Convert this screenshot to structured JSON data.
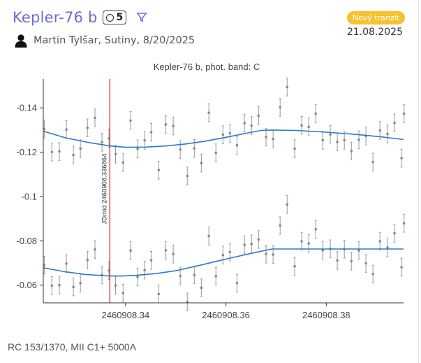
{
  "header": {
    "planet": "Kepler-76 b",
    "observation_count": "5",
    "tag": "Nový tranzit",
    "date": "21.08.2025",
    "author": "Martin Tylšar, Sutiny, 8/20/2025"
  },
  "footer": {
    "equipment": "RC 153/1370, MII C1+ 5000A"
  },
  "icons": {
    "count": "circle-icon",
    "filter": "filter-icon",
    "user": "user-icon"
  },
  "colors": {
    "title": "#6b6bd6",
    "tag": "#f7c230",
    "model": "#2b7ac9",
    "points": "#8a8a8a",
    "midline": "#cc1f1f"
  },
  "chart_data": {
    "type": "scatter",
    "title": "Kepler-76 b, phot. band: C",
    "xlim": [
      2460908.3236,
      2460908.3954
    ],
    "ylim": [
      -0.052,
      -0.153
    ],
    "xticks": [
      2460908.34,
      2460908.36,
      2460908.38
    ],
    "xtick_labels": [
      "2460908.34",
      "2460908.36",
      "2460908.38"
    ],
    "yticks": [
      -0.06,
      -0.08,
      -0.1,
      -0.12,
      -0.14
    ],
    "ytick_labels": [
      "-0.06",
      "-0.08",
      "-0.1",
      "-0.12",
      "-0.14"
    ],
    "grid": false,
    "midline": {
      "x": 2460908.336864,
      "label": "JDmid 2460908.336864"
    },
    "error": 0.004,
    "series": [
      {
        "points": [
          [
            2460908.3238,
            -0.1305
          ],
          [
            2460908.3253,
            -0.1201
          ],
          [
            2460908.3268,
            -0.1203
          ],
          [
            2460908.3282,
            -0.1302
          ],
          [
            2460908.3296,
            -0.1187
          ],
          [
            2460908.331,
            -0.1216
          ],
          [
            2460908.3324,
            -0.131
          ],
          [
            2460908.3339,
            -0.1355
          ],
          [
            2460908.3353,
            -0.1245
          ],
          [
            2460908.3367,
            -0.1262
          ],
          [
            2460908.338,
            -0.1191
          ],
          [
            2460908.3395,
            -0.1153
          ],
          [
            2460908.341,
            -0.1343
          ],
          [
            2460908.3424,
            -0.1215
          ],
          [
            2460908.3438,
            -0.1253
          ],
          [
            2460908.3451,
            -0.129
          ],
          [
            2460908.3466,
            -0.1119
          ],
          [
            2460908.348,
            -0.1325
          ],
          [
            2460908.3495,
            -0.1318
          ],
          [
            2460908.3509,
            -0.1212
          ],
          [
            2460908.3523,
            -0.1093
          ],
          [
            2460908.3537,
            -0.1217
          ],
          [
            2460908.3551,
            -0.1151
          ],
          [
            2460908.3566,
            -0.1378
          ],
          [
            2460908.358,
            -0.1197
          ],
          [
            2460908.3594,
            -0.1279
          ],
          [
            2460908.3608,
            -0.1285
          ],
          [
            2460908.3622,
            -0.1231
          ],
          [
            2460908.3637,
            -0.1331
          ],
          [
            2460908.3651,
            -0.132
          ],
          [
            2460908.3665,
            -0.1365
          ],
          [
            2460908.368,
            -0.1268
          ],
          [
            2460908.3694,
            -0.126
          ],
          [
            2460908.3708,
            -0.1402
          ],
          [
            2460908.3722,
            -0.1494
          ],
          [
            2460908.3737,
            -0.1216
          ],
          [
            2460908.3751,
            -0.1321
          ],
          [
            2460908.3765,
            -0.1314
          ],
          [
            2460908.3779,
            -0.1374
          ],
          [
            2460908.3793,
            -0.1254
          ],
          [
            2460908.3808,
            -0.128
          ],
          [
            2460908.3822,
            -0.1246
          ],
          [
            2460908.3836,
            -0.1254
          ],
          [
            2460908.385,
            -0.1205
          ],
          [
            2460908.3865,
            -0.1256
          ],
          [
            2460908.3879,
            -0.1273
          ],
          [
            2460908.3893,
            -0.1155
          ],
          [
            2460908.3907,
            -0.1298
          ],
          [
            2460908.3922,
            -0.1282
          ],
          [
            2460908.3936,
            -0.1332
          ],
          [
            2460908.395,
            -0.1173
          ],
          [
            2460908.3955,
            -0.1374
          ]
        ],
        "model": [
          [
            2460908.3236,
            -0.1295
          ],
          [
            2460908.328,
            -0.1265
          ],
          [
            2460908.333,
            -0.1242
          ],
          [
            2460908.337,
            -0.1228
          ],
          [
            2460908.34,
            -0.1222
          ],
          [
            2460908.344,
            -0.1223
          ],
          [
            2460908.348,
            -0.1228
          ],
          [
            2460908.352,
            -0.1237
          ],
          [
            2460908.356,
            -0.125
          ],
          [
            2460908.36,
            -0.1267
          ],
          [
            2460908.364,
            -0.1285
          ],
          [
            2460908.367,
            -0.1298
          ],
          [
            2460908.369,
            -0.13
          ],
          [
            2460908.374,
            -0.1298
          ],
          [
            2460908.38,
            -0.129
          ],
          [
            2460908.386,
            -0.128
          ],
          [
            2460908.391,
            -0.1269
          ],
          [
            2460908.3954,
            -0.1257
          ]
        ]
      },
      {
        "points": [
          [
            2460908.3238,
            -0.069
          ],
          [
            2460908.3253,
            -0.0598
          ],
          [
            2460908.3268,
            -0.06
          ],
          [
            2460908.3282,
            -0.0697
          ],
          [
            2460908.3296,
            -0.0592
          ],
          [
            2460908.331,
            -0.0609
          ],
          [
            2460908.3324,
            -0.0713
          ],
          [
            2460908.3339,
            -0.0761
          ],
          [
            2460908.3353,
            -0.0646
          ],
          [
            2460908.3367,
            -0.0666
          ],
          [
            2460908.338,
            -0.0599
          ],
          [
            2460908.3395,
            -0.0564
          ],
          [
            2460908.341,
            -0.0756
          ],
          [
            2460908.3424,
            -0.0637
          ],
          [
            2460908.3438,
            -0.0668
          ],
          [
            2460908.3451,
            -0.0712
          ],
          [
            2460908.3466,
            -0.056
          ],
          [
            2460908.348,
            -0.0757
          ],
          [
            2460908.3495,
            -0.074
          ],
          [
            2460908.3509,
            -0.0641
          ],
          [
            2460908.3523,
            -0.0524
          ],
          [
            2460908.3537,
            -0.0646
          ],
          [
            2460908.3551,
            -0.0588
          ],
          [
            2460908.3566,
            -0.0822
          ],
          [
            2460908.358,
            -0.064
          ],
          [
            2460908.3594,
            -0.0736
          ],
          [
            2460908.3608,
            -0.0749
          ],
          [
            2460908.3622,
            -0.0609
          ],
          [
            2460908.3637,
            -0.0782
          ],
          [
            2460908.3651,
            -0.0786
          ],
          [
            2460908.3665,
            -0.0806
          ],
          [
            2460908.368,
            -0.074
          ],
          [
            2460908.3694,
            -0.0738
          ],
          [
            2460908.3708,
            -0.0869
          ],
          [
            2460908.3722,
            -0.0964
          ],
          [
            2460908.3737,
            -0.0685
          ],
          [
            2460908.3751,
            -0.0798
          ],
          [
            2460908.3765,
            -0.0788
          ],
          [
            2460908.3779,
            -0.0852
          ],
          [
            2460908.3793,
            -0.0757
          ],
          [
            2460908.3808,
            -0.0764
          ],
          [
            2460908.3822,
            -0.0711
          ],
          [
            2460908.3836,
            -0.0762
          ],
          [
            2460908.385,
            -0.0708
          ],
          [
            2460908.3865,
            -0.0756
          ],
          [
            2460908.3879,
            -0.0698
          ],
          [
            2460908.3893,
            -0.065
          ],
          [
            2460908.3907,
            -0.0798
          ],
          [
            2460908.3922,
            -0.0769
          ],
          [
            2460908.3936,
            -0.0834
          ],
          [
            2460908.395,
            -0.0681
          ],
          [
            2460908.3955,
            -0.0879
          ]
        ],
        "model": [
          [
            2460908.3236,
            -0.0678
          ],
          [
            2460908.328,
            -0.066
          ],
          [
            2460908.332,
            -0.0648
          ],
          [
            2460908.336,
            -0.0642
          ],
          [
            2460908.339,
            -0.0641
          ],
          [
            2460908.342,
            -0.0644
          ],
          [
            2460908.346,
            -0.0652
          ],
          [
            2460908.35,
            -0.0665
          ],
          [
            2460908.354,
            -0.0685
          ],
          [
            2460908.358,
            -0.0707
          ],
          [
            2460908.362,
            -0.0728
          ],
          [
            2460908.366,
            -0.0748
          ],
          [
            2460908.3692,
            -0.0763
          ],
          [
            2460908.372,
            -0.0763
          ],
          [
            2460908.38,
            -0.0763
          ],
          [
            2460908.39,
            -0.0763
          ],
          [
            2460908.3954,
            -0.0763
          ]
        ]
      }
    ]
  }
}
